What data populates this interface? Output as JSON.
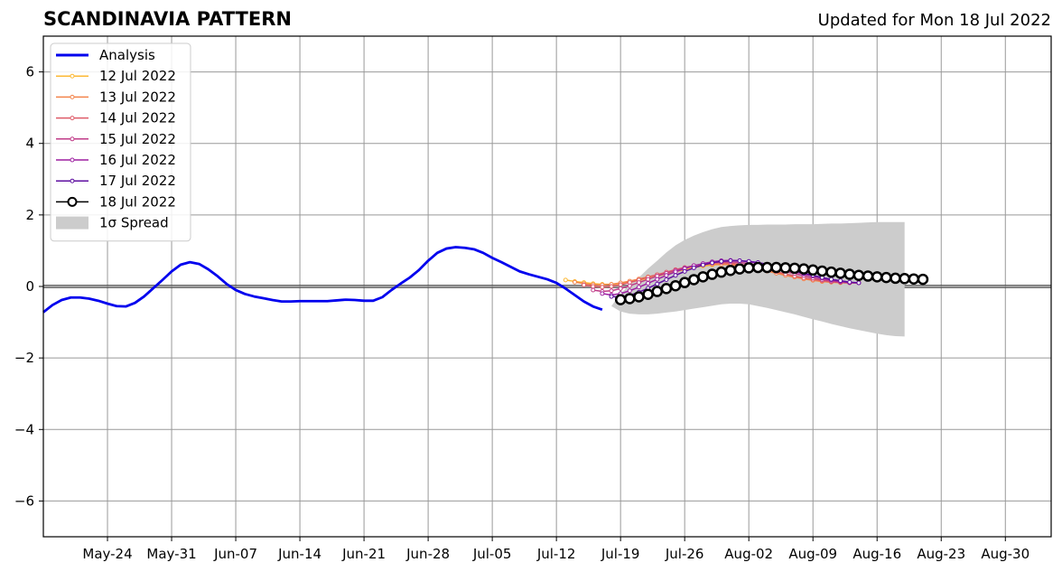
{
  "title": "SCANDINAVIA PATTERN",
  "subtitle": "Updated for Mon 18 Jul 2022",
  "chart_data": {
    "type": "line",
    "title": "SCANDINAVIA PATTERN",
    "subtitle": "Updated for Mon 18 Jul 2022",
    "x_axis": {
      "type": "date",
      "range": [
        "2022-05-17",
        "2022-09-04"
      ],
      "ticks": [
        {
          "date": "2022-05-24",
          "label": "May-24"
        },
        {
          "date": "2022-05-31",
          "label": "May-31"
        },
        {
          "date": "2022-06-07",
          "label": "Jun-07"
        },
        {
          "date": "2022-06-14",
          "label": "Jun-14"
        },
        {
          "date": "2022-06-21",
          "label": "Jun-21"
        },
        {
          "date": "2022-06-28",
          "label": "Jun-28"
        },
        {
          "date": "2022-07-05",
          "label": "Jul-05"
        },
        {
          "date": "2022-07-12",
          "label": "Jul-12"
        },
        {
          "date": "2022-07-19",
          "label": "Jul-19"
        },
        {
          "date": "2022-07-26",
          "label": "Jul-26"
        },
        {
          "date": "2022-08-02",
          "label": "Aug-02"
        },
        {
          "date": "2022-08-09",
          "label": "Aug-09"
        },
        {
          "date": "2022-08-16",
          "label": "Aug-16"
        },
        {
          "date": "2022-08-23",
          "label": "Aug-23"
        },
        {
          "date": "2022-08-30",
          "label": "Aug-30"
        }
      ]
    },
    "y_axis": {
      "range": [
        -7,
        7
      ],
      "ticks": [
        {
          "value": -6,
          "label": "−6"
        },
        {
          "value": -4,
          "label": "−4"
        },
        {
          "value": -2,
          "label": "−2"
        },
        {
          "value": 0,
          "label": "0"
        },
        {
          "value": 2,
          "label": "2"
        },
        {
          "value": 4,
          "label": "4"
        },
        {
          "value": 6,
          "label": "6"
        }
      ]
    },
    "grid": true,
    "zero_line": true,
    "legend": {
      "position": "top-left",
      "entries": [
        {
          "label": "Analysis",
          "color": "#0000ee",
          "style": "line"
        },
        {
          "label": "12 Jul 2022",
          "color": "#fcb935",
          "style": "line-marker"
        },
        {
          "label": "13 Jul 2022",
          "color": "#f3844b",
          "style": "line-marker"
        },
        {
          "label": "14 Jul 2022",
          "color": "#de5a67",
          "style": "line-marker"
        },
        {
          "label": "15 Jul 2022",
          "color": "#c03b88",
          "style": "line-marker"
        },
        {
          "label": "16 Jul 2022",
          "color": "#9d1fa1",
          "style": "line-marker"
        },
        {
          "label": "17 Jul 2022",
          "color": "#5e0fa0",
          "style": "line-marker"
        },
        {
          "label": "18 Jul 2022",
          "color": "#000000",
          "style": "line-circle"
        },
        {
          "label": "1σ Spread",
          "color": "#cccccc",
          "style": "patch"
        }
      ]
    },
    "analysis": {
      "name": "Analysis",
      "color": "#0000ee",
      "start": "2022-05-17",
      "values": [
        -0.72,
        -0.52,
        -0.38,
        -0.31,
        -0.31,
        -0.34,
        -0.4,
        -0.48,
        -0.55,
        -0.56,
        -0.46,
        -0.28,
        -0.05,
        0.18,
        0.42,
        0.61,
        0.68,
        0.63,
        0.48,
        0.29,
        0.07,
        -0.1,
        -0.21,
        -0.28,
        -0.33,
        -0.38,
        -0.42,
        -0.42,
        -0.41,
        -0.41,
        -0.41,
        -0.41,
        -0.39,
        -0.37,
        -0.38,
        -0.4,
        -0.4,
        -0.3,
        -0.1,
        0.08,
        0.25,
        0.46,
        0.72,
        0.94,
        1.06,
        1.1,
        1.08,
        1.04,
        0.94,
        0.8,
        0.68,
        0.55,
        0.42,
        0.34,
        0.27,
        0.2,
        0.1,
        -0.06,
        -0.24,
        -0.42,
        -0.56,
        -0.65
      ]
    },
    "spread": {
      "name": "1σ Spread",
      "color": "#cccccc",
      "start": "2022-07-18",
      "upper": [
        -0.55,
        -0.2,
        0.05,
        0.25,
        0.5,
        0.72,
        0.95,
        1.15,
        1.3,
        1.42,
        1.52,
        1.6,
        1.66,
        1.69,
        1.71,
        1.72,
        1.72,
        1.73,
        1.73,
        1.73,
        1.74,
        1.74,
        1.74,
        1.75,
        1.76,
        1.76,
        1.77,
        1.78,
        1.79,
        1.8,
        1.8,
        1.8,
        1.8
      ],
      "lower": [
        -0.55,
        -0.7,
        -0.76,
        -0.78,
        -0.78,
        -0.76,
        -0.73,
        -0.7,
        -0.66,
        -0.62,
        -0.58,
        -0.54,
        -0.5,
        -0.48,
        -0.48,
        -0.5,
        -0.55,
        -0.6,
        -0.66,
        -0.72,
        -0.78,
        -0.85,
        -0.92,
        -0.98,
        -1.05,
        -1.11,
        -1.17,
        -1.22,
        -1.27,
        -1.32,
        -1.36,
        -1.39,
        -1.4
      ]
    },
    "series": [
      {
        "name": "12 Jul 2022",
        "color": "#fcb935",
        "start": "2022-07-13",
        "values": [
          0.18,
          0.14,
          0.11,
          0.08,
          0.06,
          0.06,
          0.08,
          0.12,
          0.17,
          0.23,
          0.29,
          0.35,
          0.41,
          0.47,
          0.53,
          0.57,
          0.6,
          0.62,
          0.62,
          0.6,
          0.56,
          0.51,
          0.46,
          0.4,
          0.34,
          0.28,
          0.23,
          0.18,
          0.14,
          0.12,
          0.1,
          0.1,
          0.11
        ]
      },
      {
        "name": "13 Jul 2022",
        "color": "#f3844b",
        "start": "2022-07-14",
        "values": [
          0.12,
          0.08,
          0.05,
          0.04,
          0.06,
          0.1,
          0.15,
          0.21,
          0.27,
          0.33,
          0.39,
          0.45,
          0.51,
          0.56,
          0.6,
          0.62,
          0.62,
          0.61,
          0.58,
          0.54,
          0.49,
          0.43,
          0.37,
          0.31,
          0.26,
          0.21,
          0.17,
          0.14,
          0.12,
          0.11,
          0.1,
          0.1
        ]
      },
      {
        "name": "14 Jul 2022",
        "color": "#de5a67",
        "start": "2022-07-15",
        "values": [
          0.04,
          0.0,
          -0.02,
          0.0,
          0.05,
          0.11,
          0.18,
          0.26,
          0.33,
          0.4,
          0.47,
          0.53,
          0.58,
          0.62,
          0.65,
          0.66,
          0.65,
          0.62,
          0.58,
          0.53,
          0.47,
          0.41,
          0.35,
          0.29,
          0.24,
          0.2,
          0.16,
          0.13,
          0.11,
          0.1,
          0.1
        ]
      },
      {
        "name": "15 Jul 2022",
        "color": "#c03b88",
        "start": "2022-07-16",
        "values": [
          -0.1,
          -0.14,
          -0.12,
          -0.06,
          0.02,
          0.11,
          0.2,
          0.29,
          0.37,
          0.45,
          0.52,
          0.58,
          0.63,
          0.67,
          0.69,
          0.69,
          0.67,
          0.64,
          0.59,
          0.54,
          0.48,
          0.42,
          0.36,
          0.3,
          0.24,
          0.19,
          0.15,
          0.12,
          0.1,
          0.1
        ]
      },
      {
        "name": "16 Jul 2022",
        "color": "#9d1fa1",
        "start": "2022-07-17",
        "values": [
          -0.2,
          -0.24,
          -0.2,
          -0.12,
          -0.02,
          0.09,
          0.2,
          0.31,
          0.41,
          0.5,
          0.58,
          0.64,
          0.69,
          0.72,
          0.73,
          0.72,
          0.69,
          0.65,
          0.6,
          0.54,
          0.48,
          0.41,
          0.35,
          0.29,
          0.23,
          0.18,
          0.14,
          0.11,
          0.1
        ]
      },
      {
        "name": "17 Jul 2022",
        "color": "#5e0fa0",
        "start": "2022-07-18",
        "values": [
          -0.28,
          -0.3,
          -0.25,
          -0.16,
          -0.05,
          0.07,
          0.19,
          0.31,
          0.42,
          0.52,
          0.6,
          0.66,
          0.7,
          0.72,
          0.72,
          0.7,
          0.67,
          0.62,
          0.56,
          0.5,
          0.43,
          0.37,
          0.31,
          0.25,
          0.2,
          0.16,
          0.12,
          0.1
        ]
      },
      {
        "name": "18 Jul 2022",
        "color": "#000000",
        "start": "2022-07-19",
        "values": [
          -0.37,
          -0.34,
          -0.29,
          -0.22,
          -0.14,
          -0.06,
          0.02,
          0.11,
          0.19,
          0.27,
          0.34,
          0.4,
          0.45,
          0.49,
          0.52,
          0.53,
          0.53,
          0.53,
          0.52,
          0.51,
          0.49,
          0.46,
          0.43,
          0.4,
          0.37,
          0.34,
          0.31,
          0.29,
          0.27,
          0.25,
          0.23,
          0.22,
          0.21,
          0.2
        ]
      }
    ]
  }
}
